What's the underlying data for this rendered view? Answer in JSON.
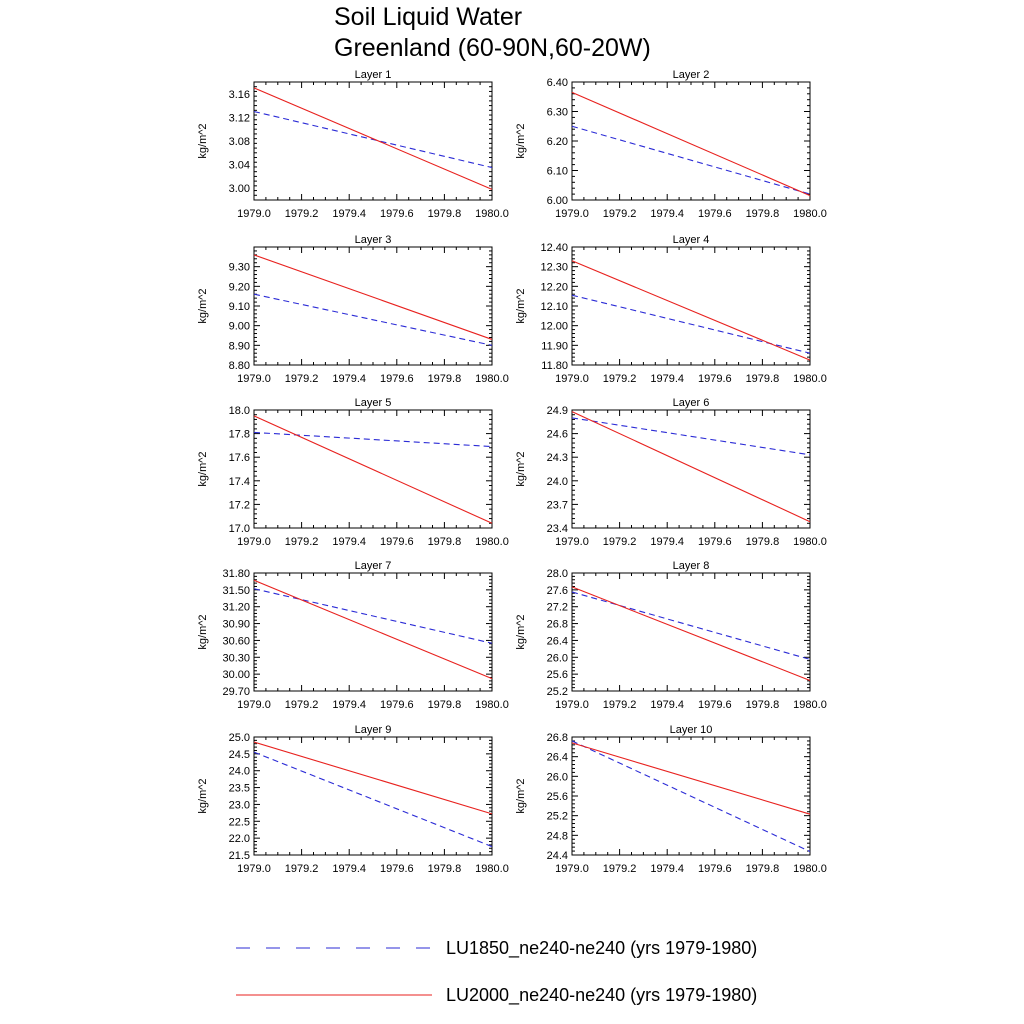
{
  "title": {
    "line1": "Soil Liquid Water",
    "line2": "Greenland (60-90N,60-20W)"
  },
  "series_styles": [
    {
      "name": "LU1850_ne240-ne240 (yrs 1979-1980)",
      "color": "#2b2bd6",
      "dash": "dashed"
    },
    {
      "name": "LU2000_ne240-ne240 (yrs 1979-1980)",
      "color": "#e8221f",
      "dash": "solid"
    }
  ],
  "chart_data": [
    {
      "type": "line",
      "title": "Layer 1",
      "ylabel": "kg/m^2",
      "x": [
        1979.0,
        1980.0
      ],
      "xlim": [
        1979.0,
        1980.0
      ],
      "xticks": [
        "1979.0",
        "1979.2",
        "1979.4",
        "1979.6",
        "1979.8",
        "1980.0"
      ],
      "ylim": [
        2.98,
        3.18
      ],
      "yticks": [
        "3.00",
        "3.04",
        "3.08",
        "3.12",
        "3.16"
      ],
      "series": [
        {
          "name": "LU1850_ne240-ne240 (yrs 1979-1980)",
          "values": [
            3.13,
            3.035
          ]
        },
        {
          "name": "LU2000_ne240-ne240 (yrs 1979-1980)",
          "values": [
            3.17,
            2.998
          ]
        }
      ]
    },
    {
      "type": "line",
      "title": "Layer 2",
      "ylabel": "kg/m^2",
      "x": [
        1979.0,
        1980.0
      ],
      "xlim": [
        1979.0,
        1980.0
      ],
      "xticks": [
        "1979.0",
        "1979.2",
        "1979.4",
        "1979.6",
        "1979.8",
        "1980.0"
      ],
      "ylim": [
        6.0,
        6.4
      ],
      "yticks": [
        "6.00",
        "6.10",
        "6.20",
        "6.30",
        "6.40"
      ],
      "series": [
        {
          "name": "LU1850_ne240-ne240 (yrs 1979-1980)",
          "values": [
            6.25,
            6.02
          ]
        },
        {
          "name": "LU2000_ne240-ne240 (yrs 1979-1980)",
          "values": [
            6.365,
            6.015
          ]
        }
      ]
    },
    {
      "type": "line",
      "title": "Layer 3",
      "ylabel": "kg/m^2",
      "x": [
        1979.0,
        1980.0
      ],
      "xlim": [
        1979.0,
        1980.0
      ],
      "xticks": [
        "1979.0",
        "1979.2",
        "1979.4",
        "1979.6",
        "1979.8",
        "1980.0"
      ],
      "ylim": [
        8.8,
        9.4
      ],
      "yticks": [
        "8.80",
        "8.90",
        "9.00",
        "9.10",
        "9.20",
        "9.30"
      ],
      "series": [
        {
          "name": "LU1850_ne240-ne240 (yrs 1979-1980)",
          "values": [
            9.16,
            8.9
          ]
        },
        {
          "name": "LU2000_ne240-ne240 (yrs 1979-1980)",
          "values": [
            9.36,
            8.93
          ]
        }
      ]
    },
    {
      "type": "line",
      "title": "Layer 4",
      "ylabel": "kg/m^2",
      "x": [
        1979.0,
        1980.0
      ],
      "xlim": [
        1979.0,
        1980.0
      ],
      "xticks": [
        "1979.0",
        "1979.2",
        "1979.4",
        "1979.6",
        "1979.8",
        "1980.0"
      ],
      "ylim": [
        11.8,
        12.4
      ],
      "yticks": [
        "11.80",
        "11.90",
        "12.00",
        "12.10",
        "12.20",
        "12.30",
        "12.40"
      ],
      "series": [
        {
          "name": "LU1850_ne240-ne240 (yrs 1979-1980)",
          "values": [
            12.155,
            11.86
          ]
        },
        {
          "name": "LU2000_ne240-ne240 (yrs 1979-1980)",
          "values": [
            12.33,
            11.825
          ]
        }
      ]
    },
    {
      "type": "line",
      "title": "Layer 5",
      "ylabel": "kg/m^2",
      "x": [
        1979.0,
        1980.0
      ],
      "xlim": [
        1979.0,
        1980.0
      ],
      "xticks": [
        "1979.0",
        "1979.2",
        "1979.4",
        "1979.6",
        "1979.8",
        "1980.0"
      ],
      "ylim": [
        17.0,
        18.0
      ],
      "yticks": [
        "17.0",
        "17.2",
        "17.4",
        "17.6",
        "17.8",
        "18.0"
      ],
      "series": [
        {
          "name": "LU1850_ne240-ne240 (yrs 1979-1980)",
          "values": [
            17.81,
            17.69
          ]
        },
        {
          "name": "LU2000_ne240-ne240 (yrs 1979-1980)",
          "values": [
            17.95,
            17.04
          ]
        }
      ]
    },
    {
      "type": "line",
      "title": "Layer 6",
      "ylabel": "kg/m^2",
      "x": [
        1979.0,
        1980.0
      ],
      "xlim": [
        1979.0,
        1980.0
      ],
      "xticks": [
        "1979.0",
        "1979.2",
        "1979.4",
        "1979.6",
        "1979.8",
        "1980.0"
      ],
      "ylim": [
        23.4,
        24.9
      ],
      "yticks": [
        "23.4",
        "23.7",
        "24.0",
        "24.3",
        "24.6",
        "24.9"
      ],
      "series": [
        {
          "name": "LU1850_ne240-ne240 (yrs 1979-1980)",
          "values": [
            24.8,
            24.33
          ]
        },
        {
          "name": "LU2000_ne240-ne240 (yrs 1979-1980)",
          "values": [
            24.88,
            23.48
          ]
        }
      ]
    },
    {
      "type": "line",
      "title": "Layer 7",
      "ylabel": "kg/m^2",
      "x": [
        1979.0,
        1980.0
      ],
      "xlim": [
        1979.0,
        1980.0
      ],
      "xticks": [
        "1979.0",
        "1979.2",
        "1979.4",
        "1979.6",
        "1979.8",
        "1980.0"
      ],
      "ylim": [
        29.7,
        31.8
      ],
      "yticks": [
        "29.70",
        "30.00",
        "30.30",
        "30.60",
        "30.90",
        "31.20",
        "31.50",
        "31.80"
      ],
      "series": [
        {
          "name": "LU1850_ne240-ne240 (yrs 1979-1980)",
          "values": [
            31.52,
            30.55
          ]
        },
        {
          "name": "LU2000_ne240-ne240 (yrs 1979-1980)",
          "values": [
            31.67,
            29.92
          ]
        }
      ]
    },
    {
      "type": "line",
      "title": "Layer 8",
      "ylabel": "kg/m^2",
      "x": [
        1979.0,
        1980.0
      ],
      "xlim": [
        1979.0,
        1980.0
      ],
      "xticks": [
        "1979.0",
        "1979.2",
        "1979.4",
        "1979.6",
        "1979.8",
        "1980.0"
      ],
      "ylim": [
        25.2,
        28.0
      ],
      "yticks": [
        "25.2",
        "25.6",
        "26.0",
        "26.4",
        "26.8",
        "27.2",
        "27.6",
        "28.0"
      ],
      "series": [
        {
          "name": "LU1850_ne240-ne240 (yrs 1979-1980)",
          "values": [
            27.55,
            25.95
          ]
        },
        {
          "name": "LU2000_ne240-ne240 (yrs 1979-1980)",
          "values": [
            27.67,
            25.45
          ]
        }
      ]
    },
    {
      "type": "line",
      "title": "Layer 9",
      "ylabel": "kg/m^2",
      "x": [
        1979.0,
        1980.0
      ],
      "xlim": [
        1979.0,
        1980.0
      ],
      "xticks": [
        "1979.0",
        "1979.2",
        "1979.4",
        "1979.6",
        "1979.8",
        "1980.0"
      ],
      "ylim": [
        21.5,
        25.0
      ],
      "yticks": [
        "21.5",
        "22.0",
        "22.5",
        "23.0",
        "23.5",
        "24.0",
        "24.5",
        "25.0"
      ],
      "series": [
        {
          "name": "LU1850_ne240-ne240 (yrs 1979-1980)",
          "values": [
            24.55,
            21.75
          ]
        },
        {
          "name": "LU2000_ne240-ne240 (yrs 1979-1980)",
          "values": [
            24.85,
            22.72
          ]
        }
      ]
    },
    {
      "type": "line",
      "title": "Layer 10",
      "ylabel": "kg/m^2",
      "x": [
        1979.0,
        1980.0
      ],
      "xlim": [
        1979.0,
        1980.0
      ],
      "xticks": [
        "1979.0",
        "1979.2",
        "1979.4",
        "1979.6",
        "1979.8",
        "1980.0"
      ],
      "ylim": [
        24.4,
        26.8
      ],
      "yticks": [
        "24.4",
        "24.8",
        "25.2",
        "25.6",
        "26.0",
        "26.4",
        "26.8"
      ],
      "series": [
        {
          "name": "LU1850_ne240-ne240 (yrs 1979-1980)",
          "values": [
            26.72,
            24.47
          ]
        },
        {
          "name": "LU2000_ne240-ne240 (yrs 1979-1980)",
          "values": [
            26.68,
            25.23
          ]
        }
      ]
    }
  ]
}
